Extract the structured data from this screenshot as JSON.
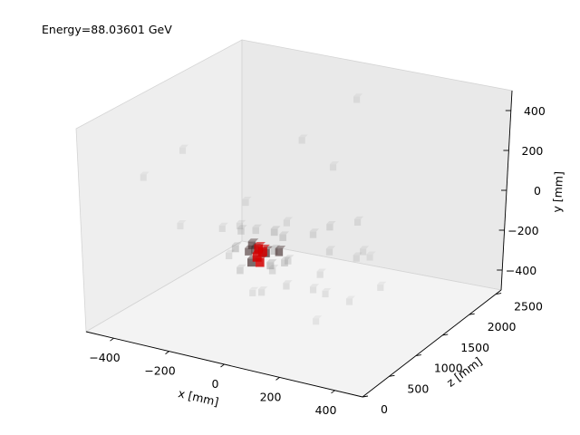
{
  "chart_data": {
    "type": "scatter",
    "projection": "3d",
    "title": "Energy=88.03601 GeV",
    "xlabel": "x [mm]",
    "ylabel": "y [mm]",
    "zlabel": "z [mm]",
    "xlim": [
      -500,
      500
    ],
    "ylim": [
      -500,
      500
    ],
    "zlim": [
      0,
      2600
    ],
    "x_ticks": [
      -400,
      -200,
      0,
      200,
      400
    ],
    "x_tick_labels": [
      "−400",
      "−200",
      "0",
      "200",
      "400"
    ],
    "y_ticks": [
      -400,
      -200,
      0,
      200,
      400
    ],
    "y_tick_labels": [
      "−400",
      "−200",
      "0",
      "200",
      "400"
    ],
    "z_ticks": [
      0,
      500,
      1000,
      1500,
      2000,
      2500
    ],
    "z_tick_labels": [
      "0",
      "500",
      "1000",
      "1500",
      "2000",
      "2500"
    ],
    "grid": false,
    "colors": {
      "core": "#d40000",
      "pane_left": "#f0f0f0",
      "pane_back": "#ececec",
      "pane_floor": "#f4f4f4",
      "edge": "#d0d0d0"
    },
    "points": [
      {
        "x": -150,
        "y": -290,
        "z": 1350,
        "e": 1.0
      },
      {
        "x": -140,
        "y": -270,
        "z": 1400,
        "e": 0.95
      },
      {
        "x": -130,
        "y": -300,
        "z": 1300,
        "e": 0.9
      },
      {
        "x": -165,
        "y": -275,
        "z": 1450,
        "e": 0.85
      },
      {
        "x": -120,
        "y": -260,
        "z": 1350,
        "e": 0.7
      },
      {
        "x": -160,
        "y": -310,
        "z": 1300,
        "e": 0.65
      },
      {
        "x": -100,
        "y": -280,
        "z": 1500,
        "e": 0.5
      },
      {
        "x": -180,
        "y": -250,
        "z": 1400,
        "e": 0.5
      },
      {
        "x": -140,
        "y": -230,
        "z": 1250,
        "e": 0.45
      },
      {
        "x": -200,
        "y": -300,
        "z": 1450,
        "e": 0.4
      },
      {
        "x": -110,
        "y": -330,
        "z": 1400,
        "e": 0.35
      },
      {
        "x": -90,
        "y": -240,
        "z": 1350,
        "e": 0.3
      },
      {
        "x": -220,
        "y": -260,
        "z": 1300,
        "e": 0.3
      },
      {
        "x": -130,
        "y": -200,
        "z": 1550,
        "e": 0.25
      },
      {
        "x": -60,
        "y": -300,
        "z": 1400,
        "e": 0.25
      },
      {
        "x": -190,
        "y": -350,
        "z": 1250,
        "e": 0.2
      },
      {
        "x": -80,
        "y": -190,
        "z": 1450,
        "e": 0.2
      },
      {
        "x": -240,
        "y": -220,
        "z": 1500,
        "e": 0.18
      },
      {
        "x": -30,
        "y": -260,
        "z": 1300,
        "e": 0.16
      },
      {
        "x": -160,
        "y": -160,
        "z": 1350,
        "e": 0.15
      },
      {
        "x": -120,
        "y": -380,
        "z": 1500,
        "e": 0.15
      },
      {
        "x": 0,
        "y": -180,
        "z": 1600,
        "e": 0.12
      },
      {
        "x": 40,
        "y": -150,
        "z": 1700,
        "e": 0.12
      },
      {
        "x": -260,
        "y": -330,
        "z": 1400,
        "e": 0.12
      },
      {
        "x": -200,
        "y": -130,
        "z": 1250,
        "e": 0.1
      },
      {
        "x": 80,
        "y": -220,
        "z": 1500,
        "e": 0.1
      },
      {
        "x": -40,
        "y": -400,
        "z": 1350,
        "e": 0.1
      },
      {
        "x": 120,
        "y": -120,
        "z": 1800,
        "e": 0.09
      },
      {
        "x": -100,
        "y": -420,
        "z": 1200,
        "e": 0.09
      },
      {
        "x": 60,
        "y": -330,
        "z": 1450,
        "e": 0.08
      },
      {
        "x": -280,
        "y": -190,
        "z": 1350,
        "e": 0.08
      },
      {
        "x": 150,
        "y": -260,
        "z": 1650,
        "e": 0.08
      },
      {
        "x": -60,
        "y": -100,
        "z": 1400,
        "e": 0.07
      },
      {
        "x": 20,
        "y": -440,
        "z": 1550,
        "e": 0.07
      },
      {
        "x": 200,
        "y": -180,
        "z": 1500,
        "e": 0.07
      },
      {
        "x": -150,
        "y": -460,
        "z": 1300,
        "e": 0.06
      },
      {
        "x": 110,
        "y": -380,
        "z": 1300,
        "e": 0.06
      },
      {
        "x": -220,
        "y": -60,
        "z": 1450,
        "e": 0.06
      },
      {
        "x": 260,
        "y": -350,
        "z": 1550,
        "e": 0.05
      },
      {
        "x": 40,
        "y": 150,
        "z": 1700,
        "e": 0.05
      },
      {
        "x": -40,
        "y": 300,
        "z": 1500,
        "e": 0.05
      },
      {
        "x": 170,
        "y": -430,
        "z": 1450,
        "e": 0.05
      },
      {
        "x": -300,
        "y": 350,
        "z": 600,
        "e": 0.04
      },
      {
        "x": 20,
        "y": 380,
        "z": 2200,
        "e": 0.04
      },
      {
        "x": -380,
        "y": 250,
        "z": 300,
        "e": 0.03
      },
      {
        "x": 280,
        "y": -120,
        "z": 1200,
        "e": 0.03
      },
      {
        "x": -330,
        "y": -80,
        "z": 800,
        "e": 0.03
      },
      {
        "x": 100,
        "y": -500,
        "z": 1200,
        "e": 0.03
      }
    ]
  }
}
